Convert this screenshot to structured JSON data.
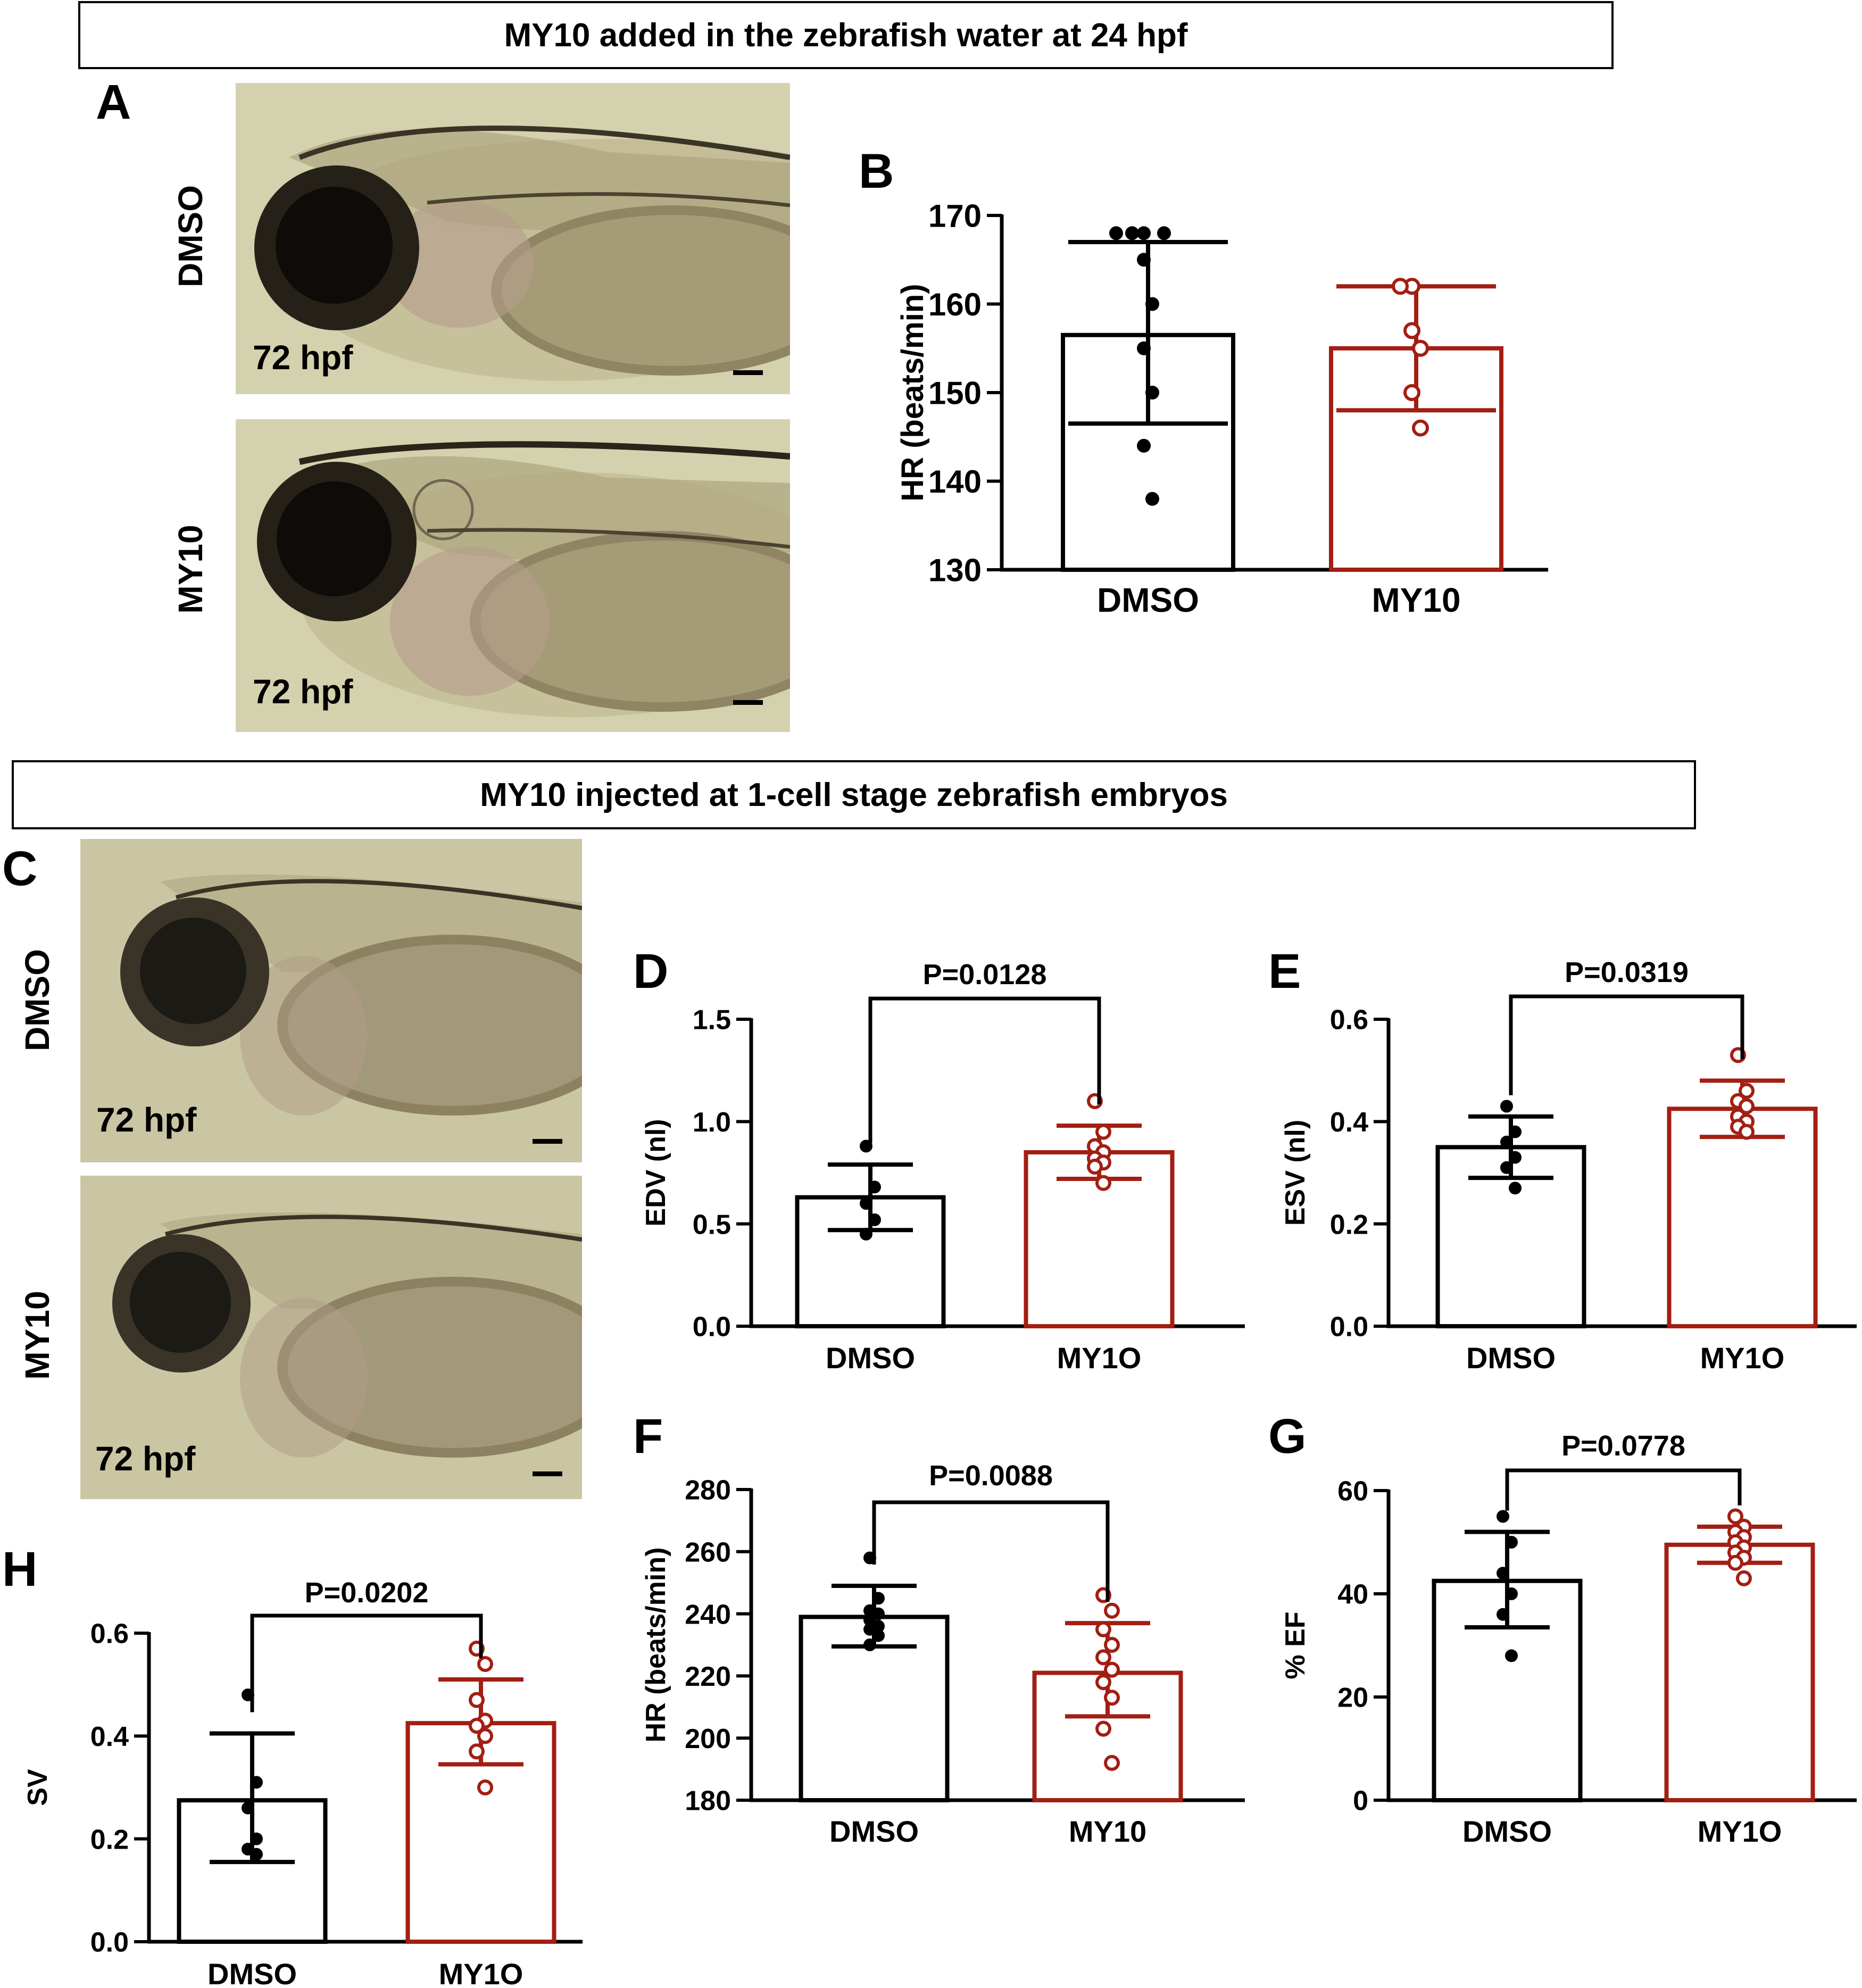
{
  "section_titles": {
    "top": "MY10 added in the zebrafish water at 24 hpf",
    "middle": "MY10 injected at 1-cell stage zebrafish embryos"
  },
  "panel_letters": {
    "A": "A",
    "B": "B",
    "C": "C",
    "D": "D",
    "E": "E",
    "F": "F",
    "G": "G",
    "H": "H"
  },
  "micrographs": {
    "A_top": {
      "condition": "DMSO",
      "stage": "72 hpf"
    },
    "A_bottom": {
      "condition": "MY10",
      "stage": "72 hpf"
    },
    "C_top": {
      "condition": "DMSO",
      "stage": "72 hpf"
    },
    "C_bottom": {
      "condition": "MY10",
      "stage": "72 hpf"
    }
  },
  "colors": {
    "control": "#000000",
    "treated": "#a31e13",
    "micro_bg_A": "#d4d2ae",
    "micro_bg_C": "#cac6a3"
  },
  "chart_data": [
    {
      "id": "B",
      "type": "bar",
      "ylabel": "HR (beats/min)",
      "categories": [
        "DMSO",
        "MY10"
      ],
      "ylim": [
        130,
        170
      ],
      "yticks": [
        130,
        140,
        150,
        160,
        170
      ],
      "means": [
        156.5,
        155
      ],
      "sd_upper": [
        167,
        162
      ],
      "sd_lower": [
        146.5,
        148
      ],
      "points": [
        [
          168,
          168,
          168,
          168,
          165,
          160,
          155,
          150,
          144,
          138
        ],
        [
          162,
          162,
          157,
          155,
          150,
          146
        ]
      ],
      "pvalue": ""
    },
    {
      "id": "D",
      "type": "bar",
      "ylabel": "EDV (nl)",
      "categories": [
        "DMSO",
        "MY1O"
      ],
      "ylim": [
        0,
        1.5
      ],
      "yticks": [
        "0.0",
        "0.5",
        "1.0",
        "1.5"
      ],
      "means": [
        0.63,
        0.85
      ],
      "sd_upper": [
        0.79,
        0.98
      ],
      "sd_lower": [
        0.47,
        0.72
      ],
      "points": [
        [
          0.88,
          0.68,
          0.6,
          0.52,
          0.45
        ],
        [
          1.1,
          0.95,
          0.88,
          0.85,
          0.82,
          0.8,
          0.78,
          0.7
        ]
      ],
      "pvalue": "P=0.0128"
    },
    {
      "id": "E",
      "type": "bar",
      "ylabel": "ESV (nl)",
      "categories": [
        "DMSO",
        "MY1O"
      ],
      "ylim": [
        0,
        0.6
      ],
      "yticks": [
        "0.0",
        "0.2",
        "0.4",
        "0.6"
      ],
      "means": [
        0.35,
        0.425
      ],
      "sd_upper": [
        0.41,
        0.48
      ],
      "sd_lower": [
        0.29,
        0.37
      ],
      "points": [
        [
          0.43,
          0.38,
          0.36,
          0.33,
          0.31,
          0.27
        ],
        [
          0.53,
          0.46,
          0.44,
          0.43,
          0.41,
          0.4,
          0.39,
          0.38
        ]
      ],
      "pvalue": "P=0.0319"
    },
    {
      "id": "F",
      "type": "bar",
      "ylabel": "HR (beats/min)",
      "categories": [
        "DMSO",
        "MY10"
      ],
      "ylim": [
        180,
        280
      ],
      "yticks": [
        180,
        200,
        220,
        240,
        260,
        280
      ],
      "means": [
        239,
        221
      ],
      "sd_upper": [
        249,
        237
      ],
      "sd_lower": [
        229.5,
        207
      ],
      "points": [
        [
          258,
          245,
          241,
          240,
          238,
          236,
          235,
          233,
          230
        ],
        [
          246,
          241,
          235,
          230,
          226,
          222,
          218,
          213,
          203,
          192
        ]
      ],
      "pvalue": "P=0.0088"
    },
    {
      "id": "G",
      "type": "bar",
      "ylabel": "% EF",
      "categories": [
        "DMSO",
        "MY1O"
      ],
      "ylim": [
        0,
        60
      ],
      "yticks": [
        0,
        20,
        40,
        60
      ],
      "means": [
        42.5,
        49.5
      ],
      "sd_upper": [
        52,
        53
      ],
      "sd_lower": [
        33.5,
        46
      ],
      "points": [
        [
          55,
          50,
          44,
          40,
          36,
          28
        ],
        [
          55,
          53,
          52,
          51,
          50,
          49,
          48,
          47,
          46,
          43
        ]
      ],
      "pvalue": "P=0.0778"
    },
    {
      "id": "H",
      "type": "bar",
      "ylabel": "SV",
      "categories": [
        "DMSO",
        "MY1O"
      ],
      "ylim": [
        0,
        0.6
      ],
      "yticks": [
        "0.0",
        "0.2",
        "0.4",
        "0.6"
      ],
      "means": [
        0.275,
        0.425
      ],
      "sd_upper": [
        0.405,
        0.51
      ],
      "sd_lower": [
        0.155,
        0.345
      ],
      "points": [
        [
          0.48,
          0.31,
          0.26,
          0.2,
          0.18,
          0.17
        ],
        [
          0.57,
          0.54,
          0.47,
          0.43,
          0.42,
          0.4,
          0.37,
          0.3
        ]
      ],
      "pvalue": "P=0.0202"
    }
  ]
}
